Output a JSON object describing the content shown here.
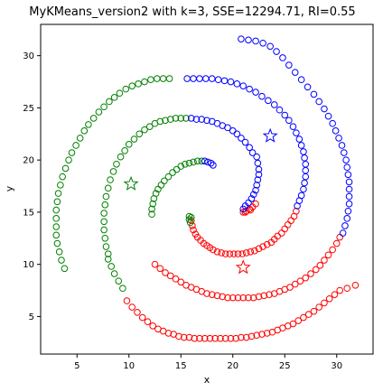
{
  "chart_data": {
    "type": "scatter",
    "title": "MyKMeans_version2 with k=3, SSE=12294.71, RI=0.55",
    "xlabel": "x",
    "ylabel": "y",
    "xlim": [
      1.5,
      33.5
    ],
    "ylim": [
      1.4,
      33.0
    ],
    "xticks": [
      5,
      10,
      15,
      20,
      25,
      30
    ],
    "yticks": [
      5,
      10,
      15,
      20,
      25,
      30
    ],
    "grid": false,
    "legend": "none",
    "series": [
      {
        "cluster": "red",
        "color": "#ff0000",
        "points": [
          [
            21.0,
            15.0
          ],
          [
            21.3,
            15.1
          ],
          [
            21.6,
            15.3
          ],
          [
            21.9,
            15.5
          ],
          [
            22.2,
            15.8
          ],
          [
            21.7,
            15.2
          ],
          [
            21.2,
            15.0
          ],
          [
            16.0,
            14.2
          ],
          [
            16.1,
            13.7
          ],
          [
            16.2,
            13.3
          ],
          [
            16.4,
            12.9
          ],
          [
            16.6,
            12.6
          ],
          [
            16.9,
            12.3
          ],
          [
            17.2,
            12.0
          ],
          [
            17.5,
            11.8
          ],
          [
            17.8,
            11.6
          ],
          [
            18.1,
            11.4
          ],
          [
            18.5,
            11.2
          ],
          [
            18.9,
            11.1
          ],
          [
            19.3,
            11.0
          ],
          [
            19.7,
            11.0
          ],
          [
            20.1,
            11.0
          ],
          [
            20.5,
            11.0
          ],
          [
            20.9,
            11.0
          ],
          [
            21.3,
            11.1
          ],
          [
            21.7,
            11.2
          ],
          [
            22.1,
            11.3
          ],
          [
            22.5,
            11.5
          ],
          [
            22.9,
            11.7
          ],
          [
            23.3,
            11.9
          ],
          [
            23.7,
            12.1
          ],
          [
            24.0,
            12.4
          ],
          [
            24.3,
            12.7
          ],
          [
            24.7,
            13.0
          ],
          [
            25.0,
            13.4
          ],
          [
            25.3,
            13.8
          ],
          [
            25.6,
            14.2
          ],
          [
            25.9,
            14.6
          ],
          [
            26.1,
            15.1
          ],
          [
            12.5,
            10.0
          ],
          [
            13.0,
            9.6
          ],
          [
            13.5,
            9.2
          ],
          [
            14.0,
            8.9
          ],
          [
            14.5,
            8.6
          ],
          [
            15.0,
            8.3
          ],
          [
            15.5,
            8.0
          ],
          [
            16.0,
            7.8
          ],
          [
            16.5,
            7.6
          ],
          [
            17.0,
            7.4
          ],
          [
            17.5,
            7.2
          ],
          [
            18.0,
            7.1
          ],
          [
            18.5,
            7.0
          ],
          [
            19.0,
            6.9
          ],
          [
            19.5,
            6.8
          ],
          [
            20.0,
            6.8
          ],
          [
            20.5,
            6.8
          ],
          [
            21.0,
            6.8
          ],
          [
            21.5,
            6.8
          ],
          [
            22.0,
            6.8
          ],
          [
            22.5,
            6.9
          ],
          [
            23.0,
            7.0
          ],
          [
            23.5,
            7.1
          ],
          [
            24.0,
            7.2
          ],
          [
            24.5,
            7.4
          ],
          [
            25.0,
            7.6
          ],
          [
            25.5,
            7.8
          ],
          [
            26.0,
            8.1
          ],
          [
            26.5,
            8.4
          ],
          [
            27.0,
            8.7
          ],
          [
            27.5,
            9.1
          ],
          [
            28.0,
            9.5
          ],
          [
            28.4,
            9.9
          ],
          [
            28.8,
            10.4
          ],
          [
            29.2,
            10.9
          ],
          [
            29.6,
            11.4
          ],
          [
            30.0,
            12.0
          ],
          [
            30.3,
            12.6
          ],
          [
            9.8,
            6.5
          ],
          [
            10.3,
            5.9
          ],
          [
            10.8,
            5.4
          ],
          [
            11.3,
            4.9
          ],
          [
            11.8,
            4.5
          ],
          [
            12.3,
            4.1
          ],
          [
            12.8,
            3.8
          ],
          [
            13.3,
            3.6
          ],
          [
            13.8,
            3.4
          ],
          [
            14.3,
            3.3
          ],
          [
            14.8,
            3.1
          ],
          [
            15.3,
            3.0
          ],
          [
            15.8,
            3.0
          ],
          [
            16.3,
            2.9
          ],
          [
            16.8,
            2.9
          ],
          [
            17.3,
            2.9
          ],
          [
            17.8,
            2.9
          ],
          [
            18.3,
            2.9
          ],
          [
            18.8,
            2.9
          ],
          [
            19.3,
            2.9
          ],
          [
            19.8,
            2.9
          ],
          [
            20.3,
            2.9
          ],
          [
            20.8,
            3.0
          ],
          [
            21.3,
            3.0
          ],
          [
            21.8,
            3.1
          ],
          [
            22.3,
            3.2
          ],
          [
            22.8,
            3.3
          ],
          [
            23.3,
            3.4
          ],
          [
            23.8,
            3.5
          ],
          [
            24.3,
            3.7
          ],
          [
            24.8,
            3.9
          ],
          [
            25.3,
            4.1
          ],
          [
            25.8,
            4.3
          ],
          [
            26.3,
            4.6
          ],
          [
            26.8,
            4.9
          ],
          [
            27.3,
            5.2
          ],
          [
            27.8,
            5.5
          ],
          [
            28.3,
            5.9
          ],
          [
            28.8,
            6.3
          ],
          [
            29.3,
            6.7
          ],
          [
            29.8,
            7.1
          ],
          [
            30.3,
            7.5
          ],
          [
            31.0,
            7.7
          ],
          [
            31.8,
            8.0
          ]
        ]
      },
      {
        "cluster": "green",
        "color": "#008000",
        "points": [
          [
            15.8,
            14.6
          ],
          [
            15.8,
            14.3
          ],
          [
            15.9,
            14.0
          ],
          [
            16.0,
            14.5
          ],
          [
            12.2,
            14.8
          ],
          [
            12.2,
            15.3
          ],
          [
            12.3,
            15.8
          ],
          [
            12.4,
            16.3
          ],
          [
            12.6,
            16.8
          ],
          [
            12.8,
            17.2
          ],
          [
            13.1,
            17.6
          ],
          [
            13.4,
            18.0
          ],
          [
            13.8,
            18.4
          ],
          [
            14.2,
            18.8
          ],
          [
            14.6,
            19.1
          ],
          [
            15.0,
            19.4
          ],
          [
            15.4,
            19.6
          ],
          [
            15.8,
            19.7
          ],
          [
            16.2,
            19.8
          ],
          [
            16.6,
            19.9
          ],
          [
            17.0,
            19.9
          ],
          [
            8.0,
            11.0
          ],
          [
            7.8,
            11.7
          ],
          [
            7.7,
            12.5
          ],
          [
            7.6,
            13.3
          ],
          [
            7.6,
            14.1
          ],
          [
            7.6,
            14.9
          ],
          [
            7.7,
            15.7
          ],
          [
            7.8,
            16.5
          ],
          [
            8.0,
            17.3
          ],
          [
            8.2,
            18.1
          ],
          [
            8.5,
            18.9
          ],
          [
            8.8,
            19.6
          ],
          [
            9.2,
            20.3
          ],
          [
            9.6,
            20.9
          ],
          [
            10.0,
            21.5
          ],
          [
            10.5,
            22.0
          ],
          [
            11.0,
            22.5
          ],
          [
            11.5,
            22.9
          ],
          [
            12.0,
            23.2
          ],
          [
            12.5,
            23.5
          ],
          [
            13.0,
            23.7
          ],
          [
            13.5,
            23.8
          ],
          [
            14.0,
            23.9
          ],
          [
            14.5,
            24.0
          ],
          [
            15.0,
            24.0
          ],
          [
            15.5,
            24.0
          ],
          [
            8.0,
            10.5
          ],
          [
            8.3,
            9.8
          ],
          [
            8.6,
            9.1
          ],
          [
            9.0,
            8.4
          ],
          [
            9.4,
            7.7
          ],
          [
            3.8,
            9.6
          ],
          [
            3.5,
            10.4
          ],
          [
            3.3,
            11.2
          ],
          [
            3.1,
            12.0
          ],
          [
            3.0,
            12.8
          ],
          [
            3.0,
            13.6
          ],
          [
            3.0,
            14.4
          ],
          [
            3.0,
            15.2
          ],
          [
            3.1,
            16.0
          ],
          [
            3.2,
            16.8
          ],
          [
            3.4,
            17.6
          ],
          [
            3.6,
            18.4
          ],
          [
            3.9,
            19.2
          ],
          [
            4.2,
            20.0
          ],
          [
            4.5,
            20.7
          ],
          [
            4.9,
            21.4
          ],
          [
            5.3,
            22.1
          ],
          [
            5.7,
            22.8
          ],
          [
            6.1,
            23.4
          ],
          [
            6.6,
            24.0
          ],
          [
            7.1,
            24.6
          ],
          [
            7.6,
            25.1
          ],
          [
            8.1,
            25.6
          ],
          [
            8.6,
            26.0
          ],
          [
            9.1,
            26.4
          ],
          [
            9.7,
            26.8
          ],
          [
            10.3,
            27.1
          ],
          [
            10.9,
            27.3
          ],
          [
            11.5,
            27.5
          ],
          [
            12.1,
            27.7
          ],
          [
            12.7,
            27.8
          ],
          [
            13.3,
            27.8
          ],
          [
            13.9,
            27.8
          ]
        ]
      },
      {
        "cluster": "blue",
        "color": "#0000ff",
        "points": [
          [
            17.3,
            19.9
          ],
          [
            17.6,
            19.8
          ],
          [
            17.9,
            19.7
          ],
          [
            18.1,
            19.5
          ],
          [
            21.0,
            15.3
          ],
          [
            21.2,
            15.6
          ],
          [
            21.5,
            15.9
          ],
          [
            21.8,
            16.3
          ],
          [
            22.0,
            16.7
          ],
          [
            22.2,
            17.1
          ],
          [
            22.3,
            17.6
          ],
          [
            22.4,
            18.1
          ],
          [
            22.5,
            18.6
          ],
          [
            22.5,
            19.1
          ],
          [
            22.4,
            19.7
          ],
          [
            22.3,
            20.3
          ],
          [
            16.0,
            24.0
          ],
          [
            16.5,
            23.9
          ],
          [
            17.0,
            23.9
          ],
          [
            17.5,
            23.8
          ],
          [
            18.0,
            23.7
          ],
          [
            18.5,
            23.5
          ],
          [
            19.0,
            23.3
          ],
          [
            19.5,
            23.1
          ],
          [
            20.0,
            22.8
          ],
          [
            20.4,
            22.5
          ],
          [
            20.8,
            22.1
          ],
          [
            21.2,
            21.7
          ],
          [
            21.6,
            21.2
          ],
          [
            21.9,
            20.7
          ],
          [
            26.2,
            15.6
          ],
          [
            26.4,
            16.1
          ],
          [
            26.6,
            16.6
          ],
          [
            26.8,
            17.2
          ],
          [
            26.9,
            17.8
          ],
          [
            27.0,
            18.4
          ],
          [
            27.0,
            19.0
          ],
          [
            27.0,
            19.6
          ],
          [
            26.9,
            20.2
          ],
          [
            26.8,
            20.8
          ],
          [
            26.6,
            21.4
          ],
          [
            26.4,
            22.0
          ],
          [
            26.1,
            22.6
          ],
          [
            25.8,
            23.2
          ],
          [
            25.4,
            23.8
          ],
          [
            25.0,
            24.3
          ],
          [
            24.5,
            24.8
          ],
          [
            24.0,
            25.3
          ],
          [
            23.4,
            25.7
          ],
          [
            22.8,
            26.1
          ],
          [
            22.2,
            26.5
          ],
          [
            21.6,
            26.8
          ],
          [
            21.0,
            27.1
          ],
          [
            20.4,
            27.3
          ],
          [
            19.8,
            27.5
          ],
          [
            19.2,
            27.6
          ],
          [
            18.6,
            27.7
          ],
          [
            18.0,
            27.8
          ],
          [
            17.4,
            27.8
          ],
          [
            16.8,
            27.8
          ],
          [
            16.2,
            27.8
          ],
          [
            15.6,
            27.8
          ],
          [
            30.6,
            13.0
          ],
          [
            30.8,
            13.7
          ],
          [
            31.0,
            14.4
          ],
          [
            31.1,
            15.1
          ],
          [
            31.2,
            15.8
          ],
          [
            31.2,
            16.5
          ],
          [
            31.2,
            17.2
          ],
          [
            31.2,
            17.9
          ],
          [
            31.1,
            18.6
          ],
          [
            31.0,
            19.3
          ],
          [
            30.9,
            20.0
          ],
          [
            30.7,
            20.7
          ],
          [
            30.5,
            21.4
          ],
          [
            30.2,
            22.1
          ],
          [
            29.9,
            22.8
          ],
          [
            29.6,
            23.5
          ],
          [
            29.2,
            24.2
          ],
          [
            28.8,
            24.9
          ],
          [
            28.3,
            25.6
          ],
          [
            27.8,
            26.3
          ],
          [
            27.2,
            27.0
          ],
          [
            26.6,
            27.7
          ],
          [
            26.0,
            28.4
          ],
          [
            25.4,
            29.1
          ],
          [
            24.8,
            29.8
          ],
          [
            24.2,
            30.4
          ],
          [
            23.6,
            30.9
          ],
          [
            22.9,
            31.2
          ],
          [
            22.2,
            31.4
          ],
          [
            21.5,
            31.5
          ],
          [
            20.8,
            31.6
          ]
        ]
      }
    ],
    "centroids": [
      {
        "cluster": "red",
        "color": "#ff0000",
        "x": 21.0,
        "y": 9.7
      },
      {
        "cluster": "green",
        "color": "#008000",
        "x": 10.2,
        "y": 17.7
      },
      {
        "cluster": "blue",
        "color": "#0000ff",
        "x": 23.6,
        "y": 22.3
      }
    ]
  }
}
